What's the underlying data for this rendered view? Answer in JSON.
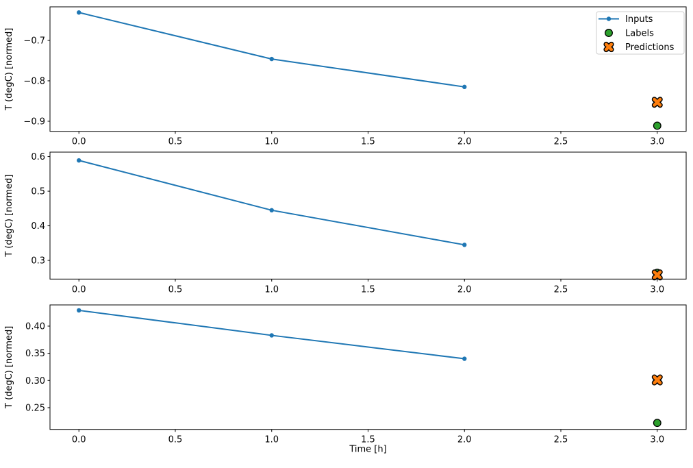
{
  "figure_title": "",
  "style": {
    "background": "#ffffff",
    "inputs_color": "#1f77b4",
    "labels_color": "#2ca02c",
    "predictions_color": "#ff7f0e",
    "marker_edge_color": "#000000",
    "axis_color": "#000000",
    "legend_border_color": "#cccccc",
    "legend_background": "#ffffff"
  },
  "legend": {
    "position": "top-right",
    "items": [
      {
        "label": "Inputs",
        "marker": "line-dot",
        "color": "#1f77b4"
      },
      {
        "label": "Labels",
        "marker": "circle",
        "color": "#2ca02c"
      },
      {
        "label": "Predictions",
        "marker": "x",
        "color": "#ff7f0e"
      }
    ]
  },
  "chart_data": [
    {
      "type": "line",
      "ylabel": "T (degC) [normed]",
      "xlabel": "",
      "xlim": [
        -0.15,
        3.15
      ],
      "ylim": [
        -0.925,
        -0.617
      ],
      "grid": false,
      "xtick_values": [
        0,
        0.5,
        1,
        1.5,
        2,
        2.5,
        3
      ],
      "xtick_labels": [
        "0.0",
        "0.5",
        "1.0",
        "1.5",
        "2.0",
        "2.5",
        "3.0"
      ],
      "ytick_values": [
        -0.7,
        -0.8,
        -0.9
      ],
      "ytick_labels": [
        "−0.7",
        "−0.8",
        "−0.9"
      ],
      "show_legend": true,
      "series": [
        {
          "name": "Inputs",
          "type": "line",
          "marker": "dot",
          "x": [
            0,
            1,
            2
          ],
          "y": [
            -0.631,
            -0.746,
            -0.815
          ]
        },
        {
          "name": "Labels",
          "type": "scatter",
          "marker": "circle",
          "x": [
            3
          ],
          "y": [
            -0.911
          ]
        },
        {
          "name": "Predictions",
          "type": "scatter",
          "marker": "x",
          "x": [
            3
          ],
          "y": [
            -0.853
          ]
        }
      ]
    },
    {
      "type": "line",
      "ylabel": "T (degC) [normed]",
      "xlabel": "",
      "xlim": [
        -0.15,
        3.15
      ],
      "ylim": [
        0.246,
        0.613
      ],
      "grid": false,
      "xtick_values": [
        0,
        0.5,
        1,
        1.5,
        2,
        2.5,
        3
      ],
      "xtick_labels": [
        "0.0",
        "0.5",
        "1.0",
        "1.5",
        "2.0",
        "2.5",
        "3.0"
      ],
      "ytick_values": [
        0.3,
        0.4,
        0.5,
        0.6
      ],
      "ytick_labels": [
        "0.3",
        "0.4",
        "0.5",
        "0.6"
      ],
      "show_legend": false,
      "series": [
        {
          "name": "Inputs",
          "type": "line",
          "marker": "dot",
          "x": [
            0,
            1,
            2
          ],
          "y": [
            0.589,
            0.445,
            0.345
          ]
        },
        {
          "name": "Labels",
          "type": "scatter",
          "marker": "circle",
          "x": [
            3
          ],
          "y": [
            0.264
          ]
        },
        {
          "name": "Predictions",
          "type": "scatter",
          "marker": "x",
          "x": [
            3
          ],
          "y": [
            0.258
          ]
        }
      ]
    },
    {
      "type": "line",
      "ylabel": "T (degC) [normed]",
      "xlabel": "Time [h]",
      "xlim": [
        -0.15,
        3.15
      ],
      "ylim": [
        0.21,
        0.439
      ],
      "grid": false,
      "xtick_values": [
        0,
        0.5,
        1,
        1.5,
        2,
        2.5,
        3
      ],
      "xtick_labels": [
        "0.0",
        "0.5",
        "1.0",
        "1.5",
        "2.0",
        "2.5",
        "3.0"
      ],
      "ytick_values": [
        0.25,
        0.3,
        0.35,
        0.4
      ],
      "ytick_labels": [
        "0.25",
        "0.30",
        "0.35",
        "0.40"
      ],
      "show_legend": false,
      "series": [
        {
          "name": "Inputs",
          "type": "line",
          "marker": "dot",
          "x": [
            0,
            1,
            2
          ],
          "y": [
            0.429,
            0.383,
            0.34
          ]
        },
        {
          "name": "Labels",
          "type": "scatter",
          "marker": "circle",
          "x": [
            3
          ],
          "y": [
            0.222
          ]
        },
        {
          "name": "Predictions",
          "type": "scatter",
          "marker": "x",
          "x": [
            3
          ],
          "y": [
            0.301
          ]
        }
      ]
    }
  ]
}
